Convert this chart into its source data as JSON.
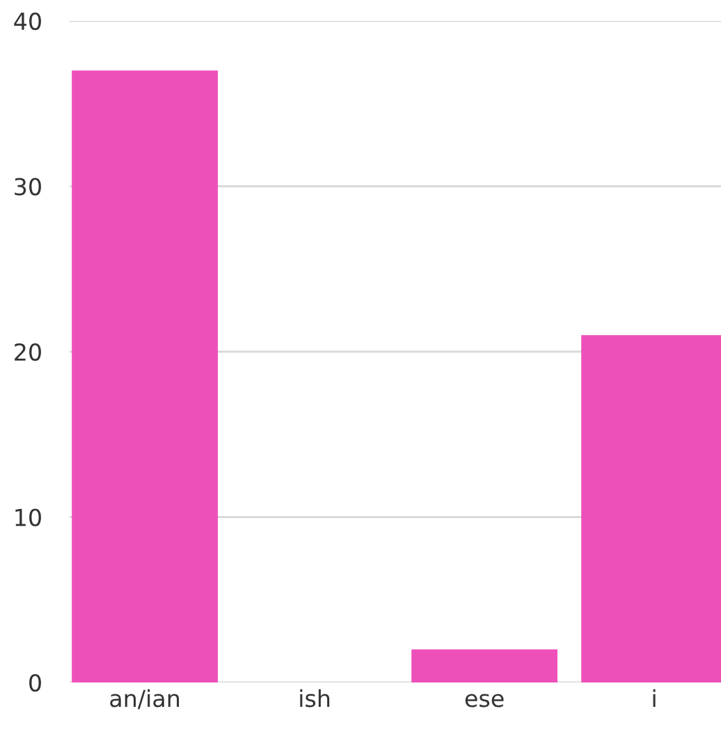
{
  "chart_data": {
    "type": "bar",
    "categories": [
      "an/ian",
      "ish",
      "ese",
      "i"
    ],
    "values": [
      37,
      0,
      2,
      21
    ],
    "color": "#ee50ba",
    "ylim": [
      0,
      40
    ],
    "yticks": [
      0,
      10,
      20,
      30,
      40
    ],
    "grid": "y"
  }
}
